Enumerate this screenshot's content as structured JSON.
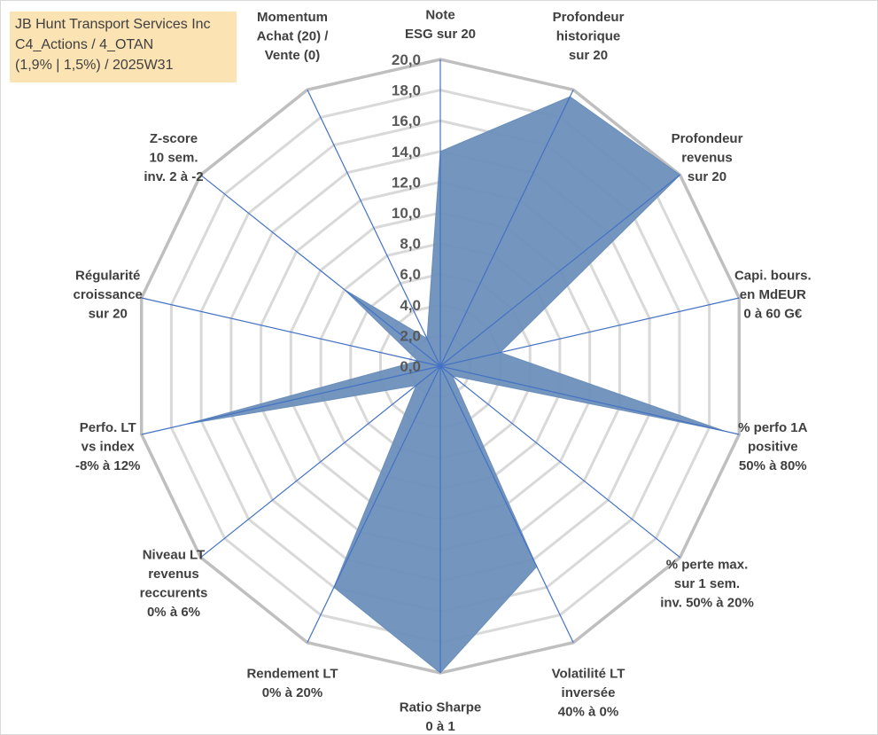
{
  "header": {
    "lines": [
      "JB Hunt Transport Services Inc",
      "C4_Actions / 4_OTAN",
      "(1,9% | 1,5%) / 2025W31"
    ]
  },
  "chart_data": {
    "type": "radar",
    "title": "JB Hunt Transport Services Inc",
    "rlim": [
      0,
      20
    ],
    "tick_step": 2,
    "tick_labels": [
      "0,0",
      "2,0",
      "4,0",
      "6,0",
      "8,0",
      "10,0",
      "12,0",
      "14,0",
      "16,0",
      "18,0",
      "20,0"
    ],
    "axes": [
      [
        "Note",
        "ESG sur 20"
      ],
      [
        "Profondeur",
        "historique",
        "sur 20"
      ],
      [
        "Profondeur",
        "revenus",
        "sur 20"
      ],
      [
        "Capi. bours.",
        "en MdEUR",
        "0 à 60 G€"
      ],
      [
        "% perfo 1A",
        "positive",
        "50% à 80%"
      ],
      [
        "% perte max.",
        "sur 1 sem.",
        "inv. 50% à 20%"
      ],
      [
        "Volatilité LT",
        "inversée",
        "40% à 0%"
      ],
      [
        "Ratio Sharpe",
        "0 à 1"
      ],
      [
        "Rendement LT",
        "0% à 20%"
      ],
      [
        "Niveau LT",
        "revenus",
        "reccurents",
        "0% à 6%"
      ],
      [
        "Perfo. LT",
        "vs index",
        "-8% à 12%"
      ],
      [
        "Régularité",
        "croissance",
        "sur 20"
      ],
      [
        "Z-score",
        "10 sem.",
        "inv. 2 à -2"
      ],
      [
        "Momentum",
        "Achat (20) /",
        "Vente (0)"
      ]
    ],
    "values": [
      14.0,
      19.5,
      20.0,
      4.0,
      19.0,
      1.0,
      14.5,
      20.0,
      16.0,
      2.0,
      17.0,
      1.5,
      8.0,
      2.0
    ],
    "grid": true,
    "legend": "none",
    "colors": {
      "fill": "#6b8fba",
      "stroke": "#4472c4",
      "spoke": "#4472c4",
      "grid_outer": "#bfbfbf",
      "grid_inner": "#d9d9d9"
    }
  }
}
